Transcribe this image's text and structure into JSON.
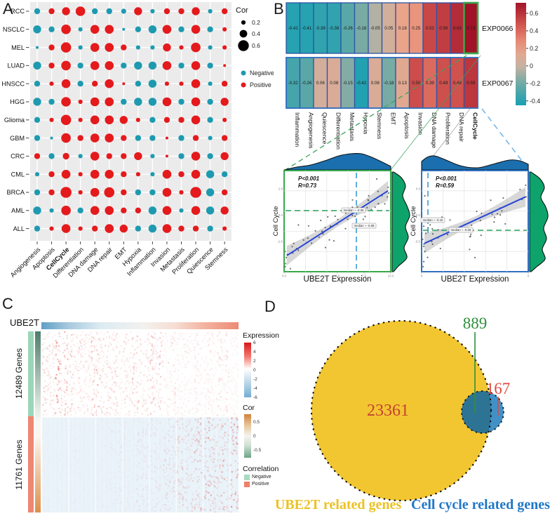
{
  "panels": {
    "a": "A",
    "b": "B",
    "c": "C",
    "d": "D"
  },
  "chart_data": [
    {
      "id": "pancancer-dotplot",
      "type": "scatter",
      "title": "",
      "rows": [
        "RCC",
        "NSCLC",
        "MEL",
        "LUAD",
        "HNSCC",
        "HGG",
        "Glioma",
        "GBM",
        "CRC",
        "CML",
        "BRCA",
        "AML",
        "ALL"
      ],
      "columns": [
        "Angiogenesis",
        "Apoptosis",
        "CellCycle",
        "Differentiation",
        "DNA damage",
        "DNA repair",
        "EMT",
        "Hypoxia",
        "Inflammation",
        "Invasion",
        "Metastasis",
        "Proliferation",
        "Quiescence",
        "Stemness"
      ],
      "values": [
        [
          -0.3,
          0.3,
          0.45,
          0.55,
          -0.3,
          -0.3,
          -0.25,
          0.45,
          -0.2,
          0.3,
          0.3,
          0.45,
          -0.2,
          0.3
        ],
        [
          -0.45,
          -0.3,
          0.55,
          -0.2,
          0.5,
          0.5,
          -0.1,
          -0.3,
          -0.45,
          0.5,
          -0.3,
          0.5,
          -0.3,
          0.2
        ],
        [
          -0.1,
          0.3,
          0.6,
          -0.2,
          0.5,
          0.5,
          0.3,
          -0.2,
          -0.2,
          0.45,
          0.2,
          0.55,
          -0.2,
          0.2
        ],
        [
          -0.45,
          0.3,
          0.55,
          -0.3,
          0.5,
          0.5,
          -0.3,
          -0.45,
          -0.45,
          0.5,
          -0.3,
          0.5,
          -0.3,
          0.1
        ],
        [
          -0.3,
          0.2,
          0.5,
          -0.3,
          0.3,
          0.5,
          0.1,
          -0.3,
          -0.45,
          0.2,
          0.2,
          0.5,
          -0.2,
          0.3
        ],
        [
          -0.45,
          -0.3,
          0.55,
          0.2,
          0.5,
          0.5,
          -0.3,
          -0.45,
          -0.45,
          0.5,
          -0.3,
          0.5,
          -0.3,
          0.45
        ],
        [
          -0.3,
          0.2,
          0.6,
          0.2,
          0.5,
          0.5,
          0.45,
          0.2,
          -0.3,
          0.3,
          0.3,
          0.5,
          -0.3,
          0.2
        ],
        [
          -0.3,
          -0.1,
          0.55,
          0.3,
          0.5,
          0.5,
          0.3,
          -0.3,
          -0.3,
          0.1,
          -0.3,
          0.3,
          -0.2,
          0.3
        ],
        [
          0.3,
          -0.3,
          0.35,
          -0.2,
          0.5,
          0.3,
          0.3,
          0.45,
          -0.2,
          0.1,
          -0.3,
          0.5,
          -0.3,
          0.45
        ],
        [
          -0.2,
          0.3,
          0.5,
          0.2,
          0.5,
          0.5,
          0.3,
          0.2,
          -0.2,
          0.5,
          0.3,
          0.5,
          -0.45,
          -0.3
        ],
        [
          -0.3,
          0.3,
          0.65,
          0.2,
          0.5,
          0.6,
          0.3,
          -0.3,
          -0.3,
          0.5,
          0.2,
          0.65,
          -0.45,
          0.3
        ],
        [
          -0.45,
          -0.2,
          0.55,
          -0.3,
          0.5,
          0.5,
          0.3,
          0.3,
          -0.45,
          0.5,
          -0.2,
          0.5,
          -0.45,
          0.45
        ],
        [
          -0.3,
          0.2,
          0.5,
          0.2,
          0.3,
          0.5,
          0.45,
          -0.3,
          -0.45,
          0.5,
          0.3,
          0.3,
          -0.3,
          0.2
        ]
      ],
      "legend": {
        "size_title": "Cor",
        "sizes": [
          "0.2",
          "0.4",
          "0.6"
        ],
        "items": [
          {
            "label": "Negative",
            "color": "#1E9AB0"
          },
          {
            "label": "Positive",
            "color": "#E41A1C"
          }
        ]
      }
    },
    {
      "id": "ssgsea-correlation-heatmap",
      "type": "heatmap",
      "columns": [
        "Inflammation",
        "Angiogenesis",
        "Quiescence",
        "Differentiation",
        "Metastasis",
        "Hypoxia",
        "Stemness",
        "EMT",
        "Apoptosis",
        "Invasion",
        "DNA damage",
        "Proliferation",
        "DNA repair",
        "CellCycle"
      ],
      "series": [
        {
          "name": "EXP0066",
          "values": [
            "-0.41",
            "-0.41",
            "-0.38",
            "-0.38",
            "-0.26",
            "-0.18",
            "-0.05",
            "0.05",
            "0.18",
            "0.25",
            "0.52",
            "0.56",
            "0.63",
            "0.73"
          ]
        },
        {
          "name": "EXP0067",
          "values": [
            "-0.32",
            "-0.26",
            "0.06",
            "0.08",
            "-0.15",
            "-0.42",
            "0.08",
            "-0.18",
            "0.13",
            "0.50",
            "0.39",
            "0.49",
            "0.48",
            "0.59"
          ]
        }
      ],
      "colorbar_ticks": [
        "0.6",
        "0.4",
        "0.2",
        "0",
        "-0.2",
        "-0.4"
      ],
      "highlight_column": "CellCycle"
    },
    {
      "id": "scatter-exp0066",
      "type": "scatter",
      "stats": {
        "p": "P<0.001",
        "r": "R=0.73"
      },
      "xlabel": "UBE2T Expression",
      "ylabel": "Cell Cycle",
      "x_ticks": [
        "0.0",
        "2.5",
        "5.0",
        "7.5",
        "10.0"
      ],
      "y_ticks": [
        "2.5",
        "0.0",
        "-2.5"
      ],
      "medians": [
        "median ~ -0.06",
        "median ~ -0.88"
      ],
      "r_value": 0.73,
      "border_color": "#37A84C"
    },
    {
      "id": "scatter-exp0067",
      "type": "scatter",
      "stats": {
        "p": "P<0.001",
        "r": "R=0.59"
      },
      "xlabel": "UBE2T Expression",
      "ylabel": "Cell Cycle",
      "x_ticks": [
        "0",
        "2",
        "4",
        "6"
      ],
      "y_ticks": [
        "0.5",
        "0.0",
        "-0.5"
      ],
      "medians": [
        "median ~ -0.42",
        "median ~ -0.06"
      ],
      "r_value": 0.59,
      "border_color": "#2F6FC0"
    },
    {
      "id": "ube2t-correlated-genes-heatmap",
      "type": "heatmap",
      "track_label": "UBE2T",
      "gene_groups": [
        {
          "label": "12489 Genes",
          "direction": "Negative"
        },
        {
          "label": "11761 Genes",
          "direction": "Positive"
        }
      ],
      "legends": {
        "expression": {
          "title": "Expression",
          "ticks": [
            "6",
            "4",
            "2",
            "0",
            "-2",
            "-4",
            "-6"
          ]
        },
        "cor": {
          "title": "Cor",
          "ticks": [
            "0.5",
            "0",
            "-0.5"
          ]
        },
        "correlation": {
          "title": "Correlation",
          "items": [
            {
              "label": "Negative",
              "color": "#A8DBC0"
            },
            {
              "label": "Positive",
              "color": "#EE7F6A"
            }
          ]
        }
      }
    },
    {
      "id": "venn-ube2t-cellcycle",
      "type": "venn",
      "sets": [
        {
          "label": "UBE2T related genes",
          "color": "#F2C630",
          "text_color": "#ECC223"
        },
        {
          "label": "Cell cycle related genes",
          "color": "#4191C7",
          "text_color": "#2178C8"
        }
      ],
      "counts": {
        "ube2t_only": "23361",
        "intersection": "889",
        "cellcycle_only": "167"
      },
      "count_colors": {
        "ube2t_only": "#C54133",
        "intersection": "#2F8F3C",
        "cellcycle_only": "#E1493E"
      },
      "overlap_color": "#2D7494"
    }
  ]
}
